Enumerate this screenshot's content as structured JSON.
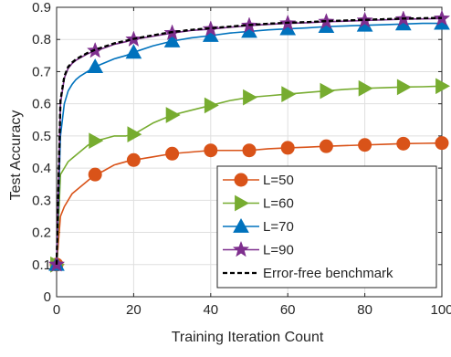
{
  "chart_data": {
    "type": "line",
    "title": "",
    "xlabel": "Training Iteration Count",
    "ylabel": "Test Accuracy",
    "xlim": [
      0,
      100
    ],
    "ylim": [
      0,
      0.9
    ],
    "xticks": [
      0,
      20,
      40,
      60,
      80,
      100
    ],
    "yticks": [
      0,
      0.1,
      0.2,
      0.3,
      0.4,
      0.5,
      0.6,
      0.7,
      0.8,
      0.9
    ],
    "xtick_labels": [
      "0",
      "20",
      "40",
      "60",
      "80",
      "100"
    ],
    "ytick_labels": [
      "0",
      "0.1",
      "0.2",
      "0.3",
      "0.4",
      "0.5",
      "0.6",
      "0.7",
      "0.8",
      "0.9"
    ],
    "grid": true,
    "legend_position": "bottom-right",
    "series": [
      {
        "name": "L=50",
        "color": "#D95319",
        "marker": "circle",
        "x": [
          0,
          1,
          2,
          3,
          4,
          5,
          6,
          8,
          10,
          12,
          15,
          18,
          20,
          25,
          30,
          35,
          40,
          45,
          50,
          55,
          60,
          65,
          70,
          75,
          80,
          85,
          90,
          95,
          100
        ],
        "y": [
          0.1,
          0.25,
          0.28,
          0.3,
          0.32,
          0.33,
          0.34,
          0.36,
          0.38,
          0.39,
          0.41,
          0.42,
          0.425,
          0.435,
          0.445,
          0.45,
          0.455,
          0.455,
          0.455,
          0.46,
          0.463,
          0.465,
          0.468,
          0.47,
          0.472,
          0.474,
          0.476,
          0.477,
          0.478
        ]
      },
      {
        "name": "L=60",
        "color": "#77AC30",
        "marker": "triangle-right",
        "x": [
          0,
          1,
          2,
          3,
          4,
          5,
          6,
          8,
          10,
          12,
          15,
          18,
          20,
          25,
          30,
          35,
          40,
          45,
          50,
          55,
          60,
          65,
          70,
          75,
          80,
          85,
          90,
          95,
          100
        ],
        "y": [
          0.1,
          0.38,
          0.4,
          0.42,
          0.43,
          0.44,
          0.45,
          0.47,
          0.485,
          0.49,
          0.5,
          0.5,
          0.505,
          0.54,
          0.565,
          0.58,
          0.595,
          0.61,
          0.62,
          0.625,
          0.63,
          0.635,
          0.64,
          0.645,
          0.648,
          0.65,
          0.652,
          0.653,
          0.655
        ]
      },
      {
        "name": "L=70",
        "color": "#0072BD",
        "marker": "triangle-up",
        "x": [
          0,
          1,
          2,
          3,
          4,
          5,
          6,
          8,
          10,
          12,
          15,
          18,
          20,
          25,
          30,
          35,
          40,
          45,
          50,
          55,
          60,
          65,
          70,
          75,
          80,
          85,
          90,
          95,
          100
        ],
        "y": [
          0.1,
          0.5,
          0.6,
          0.64,
          0.66,
          0.675,
          0.685,
          0.7,
          0.715,
          0.725,
          0.74,
          0.75,
          0.76,
          0.78,
          0.795,
          0.805,
          0.812,
          0.82,
          0.825,
          0.83,
          0.833,
          0.836,
          0.84,
          0.842,
          0.844,
          0.846,
          0.848,
          0.85,
          0.85
        ]
      },
      {
        "name": "L=90",
        "color": "#7E2F8E",
        "marker": "pentagram",
        "x": [
          0,
          1,
          2,
          3,
          4,
          5,
          6,
          8,
          10,
          12,
          15,
          18,
          20,
          25,
          30,
          35,
          40,
          45,
          50,
          55,
          60,
          65,
          70,
          75,
          80,
          85,
          90,
          95,
          100
        ],
        "y": [
          0.1,
          0.6,
          0.68,
          0.71,
          0.725,
          0.735,
          0.742,
          0.755,
          0.765,
          0.772,
          0.785,
          0.793,
          0.8,
          0.81,
          0.82,
          0.828,
          0.832,
          0.838,
          0.843,
          0.847,
          0.85,
          0.852,
          0.855,
          0.857,
          0.859,
          0.861,
          0.863,
          0.864,
          0.865
        ]
      },
      {
        "name": "Error-free benchmark",
        "color": "#000000",
        "marker": "none",
        "dashed": true,
        "x": [
          0,
          1,
          2,
          3,
          4,
          5,
          6,
          8,
          10,
          12,
          15,
          18,
          20,
          25,
          30,
          35,
          40,
          45,
          50,
          55,
          60,
          65,
          70,
          75,
          80,
          85,
          90,
          95,
          100
        ],
        "y": [
          0.1,
          0.61,
          0.685,
          0.715,
          0.728,
          0.738,
          0.745,
          0.758,
          0.768,
          0.776,
          0.788,
          0.796,
          0.802,
          0.813,
          0.823,
          0.83,
          0.835,
          0.84,
          0.845,
          0.849,
          0.852,
          0.854,
          0.857,
          0.859,
          0.861,
          0.863,
          0.865,
          0.866,
          0.867
        ]
      }
    ]
  }
}
